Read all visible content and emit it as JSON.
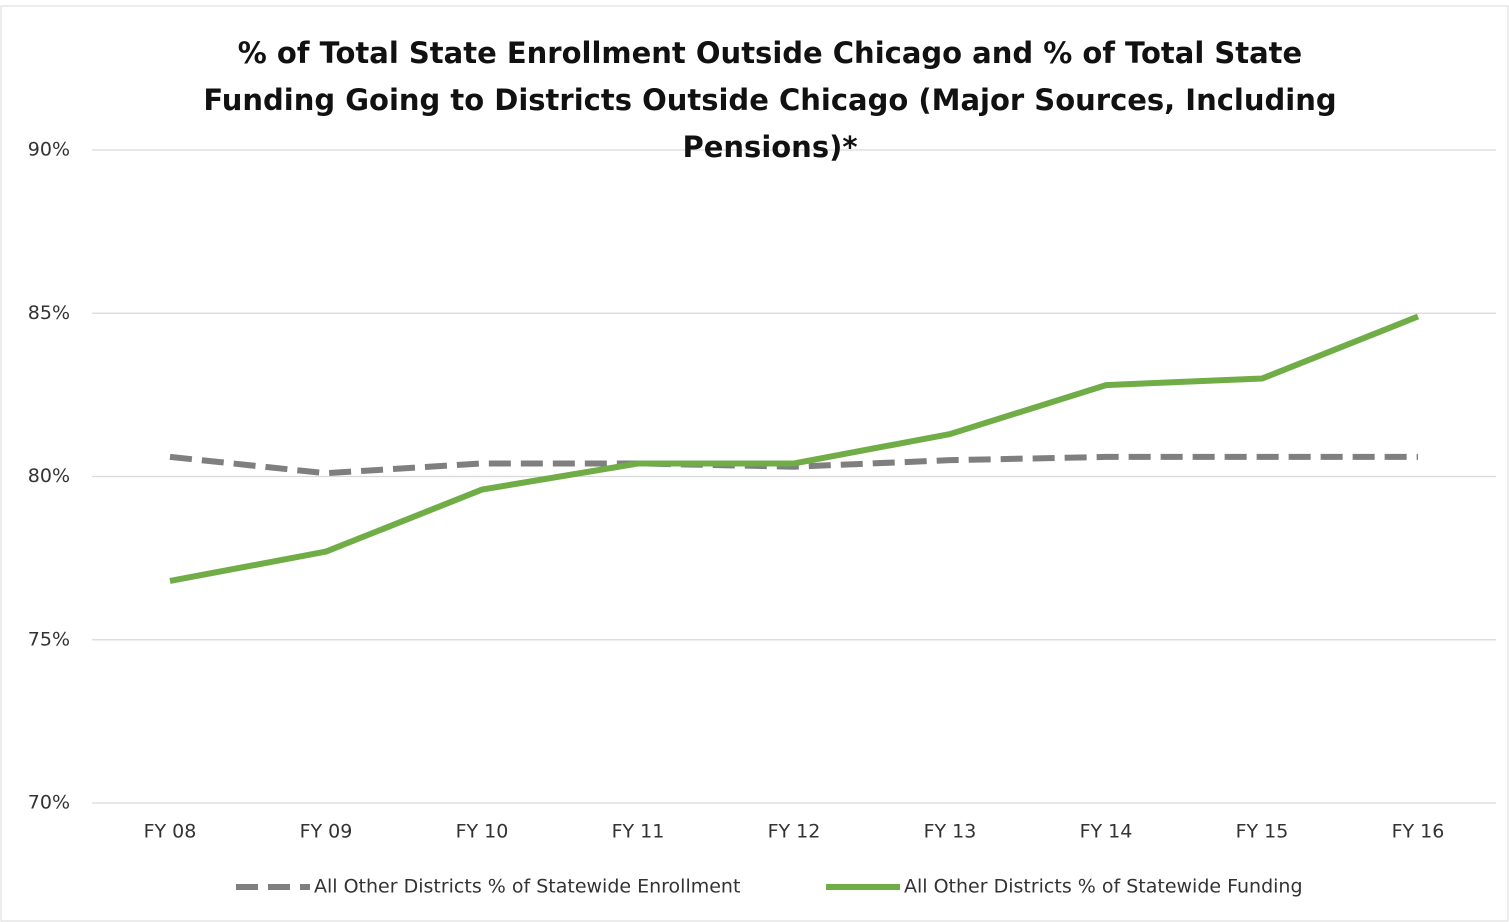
{
  "chart_data": {
    "type": "line",
    "title": "% of Total State Enrollment Outside Chicago and % of Total State Funding Going to Districts Outside Chicago (Major Sources, Including Pensions)*",
    "categories": [
      "FY 08",
      "FY 09",
      "FY 10",
      "FY 11",
      "FY 12",
      "FY 13",
      "FY 14",
      "FY 15",
      "FY 16"
    ],
    "series": [
      {
        "name": "All Other Districts % of Statewide Enrollment",
        "color": "#7f7f7f",
        "dash": true,
        "values": [
          80.6,
          80.1,
          80.4,
          80.4,
          80.3,
          80.5,
          80.6,
          80.6,
          80.6
        ]
      },
      {
        "name": "All Other Districts % of Statewide Funding",
        "color": "#70ad47",
        "dash": false,
        "values": [
          76.8,
          77.7,
          79.6,
          80.4,
          80.4,
          81.3,
          82.8,
          83.0,
          84.9
        ]
      }
    ],
    "ylim": [
      70,
      90
    ],
    "yticks": [
      {
        "value": 70,
        "label": "70%"
      },
      {
        "value": 75,
        "label": "75%"
      },
      {
        "value": 80,
        "label": "80%"
      },
      {
        "value": 85,
        "label": "85%"
      },
      {
        "value": 90,
        "label": "90%"
      }
    ],
    "grid": true,
    "legend": "bottom"
  }
}
